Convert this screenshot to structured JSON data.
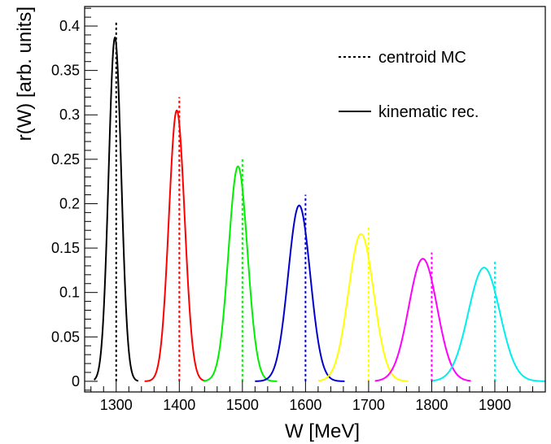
{
  "chart_data": {
    "type": "line",
    "title": "",
    "xlabel": "W [MeV]",
    "ylabel": "r(W) [arb. units]",
    "xlim": [
      1250,
      1980
    ],
    "ylim": [
      -0.012,
      0.422
    ],
    "x_ticks": [
      1300,
      1400,
      1500,
      1600,
      1700,
      1800,
      1900
    ],
    "y_ticks": [
      0,
      0.05,
      0.1,
      0.15,
      0.2,
      0.25,
      0.3,
      0.35,
      0.4
    ],
    "y_tick_labels": [
      "0",
      "0.05",
      "0.1",
      "0.15",
      "0.2",
      "0.25",
      "0.3",
      "0.35",
      "0.4"
    ],
    "x_minor_step": 20,
    "y_minor_step": 0.01,
    "grid": false,
    "legend": {
      "position": "top-right",
      "entries": [
        {
          "label": "centroid MC",
          "style": "dashed"
        },
        {
          "label": "kinematic rec.",
          "style": "solid"
        }
      ]
    },
    "series": [
      {
        "color": "#000000",
        "peak_x": 1298,
        "peak_y": 0.387,
        "sigma": 10,
        "range": [
          1265,
          1335
        ],
        "centroid_x": 1300,
        "centroid_top": 0.405
      },
      {
        "color": "#ff0000",
        "peak_x": 1396,
        "peak_y": 0.305,
        "sigma": 12.5,
        "range": [
          1345,
          1442
        ],
        "centroid_x": 1400,
        "centroid_top": 0.32
      },
      {
        "color": "#00ee00",
        "peak_x": 1493,
        "peak_y": 0.242,
        "sigma": 15,
        "range": [
          1438,
          1555
        ],
        "centroid_x": 1500,
        "centroid_top": 0.252
      },
      {
        "color": "#0000cc",
        "peak_x": 1590,
        "peak_y": 0.198,
        "sigma": 17.5,
        "range": [
          1520,
          1662
        ],
        "centroid_x": 1600,
        "centroid_top": 0.21
      },
      {
        "color": "#ffff00",
        "peak_x": 1688,
        "peak_y": 0.166,
        "sigma": 20,
        "range": [
          1620,
          1763
        ],
        "centroid_x": 1700,
        "centroid_top": 0.175
      },
      {
        "color": "#ff00ff",
        "peak_x": 1786,
        "peak_y": 0.138,
        "sigma": 22.5,
        "range": [
          1710,
          1862
        ],
        "centroid_x": 1800,
        "centroid_top": 0.145
      },
      {
        "color": "#00eeee",
        "peak_x": 1883,
        "peak_y": 0.128,
        "sigma": 25,
        "range": [
          1800,
          1980
        ],
        "centroid_x": 1900,
        "centroid_top": 0.135
      }
    ]
  }
}
